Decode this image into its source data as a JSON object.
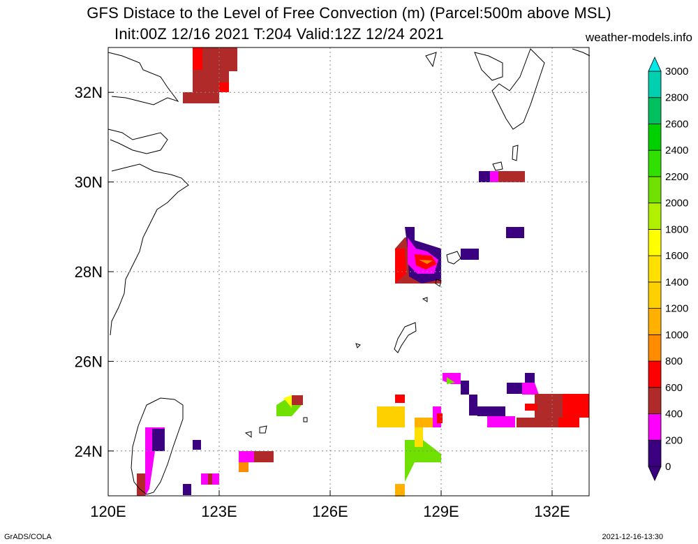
{
  "title_line1": "GFS Distace to the Level of Free Convection (m) (Parcel:500m above MSL)",
  "title_line2": "Init:00Z 12/16 2021 T:204 Valid:12Z 12/24 2021",
  "source": "weather-models.info",
  "footer_left": "GrADS/COLA",
  "footer_right": "2021-12-16-13:30",
  "map": {
    "lon_range": [
      120,
      133
    ],
    "lat_range": [
      23,
      33
    ],
    "lon_ticks": [
      {
        "value": 120,
        "label": "120E"
      },
      {
        "value": 123,
        "label": "123E"
      },
      {
        "value": 126,
        "label": "126E"
      },
      {
        "value": 129,
        "label": "129E"
      },
      {
        "value": 132,
        "label": "132E"
      }
    ],
    "lat_ticks": [
      {
        "value": 24,
        "label": "24N"
      },
      {
        "value": 26,
        "label": "26N"
      },
      {
        "value": 28,
        "label": "28N"
      },
      {
        "value": 30,
        "label": "30N"
      },
      {
        "value": 32,
        "label": "32N"
      }
    ],
    "grid": "dotted"
  },
  "colorbar": {
    "labels": [
      "0",
      "200",
      "400",
      "600",
      "800",
      "1000",
      "1200",
      "1400",
      "1600",
      "1800",
      "2000",
      "2200",
      "2400",
      "2600",
      "2800",
      "3000"
    ],
    "colors": [
      "#3a0080",
      "#ff00ff",
      "#b02a2a",
      "#ff0000",
      "#ff8c00",
      "#ffb000",
      "#ffd000",
      "#ffe000",
      "#ffff00",
      "#b0f000",
      "#70e000",
      "#30e000",
      "#00d000",
      "#00c060",
      "#00d0b0",
      "#00e8e8"
    ]
  }
}
